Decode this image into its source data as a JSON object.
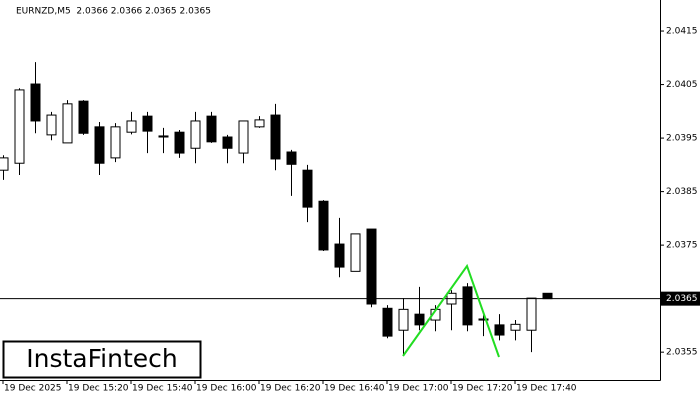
{
  "chart_data": {
    "type": "candlestick",
    "header": "EURNZD,M5  2.0366 2.0366 2.0365 2.0365",
    "logo": "InstaFintech",
    "categories": [
      "19 Dec 2025",
      null,
      null,
      null,
      "19 Dec 15:20",
      null,
      null,
      null,
      "19 Dec 15:40",
      null,
      null,
      null,
      "19 Dec 16:00",
      null,
      null,
      null,
      "19 Dec 16:20",
      null,
      null,
      null,
      "19 Dec 16:40",
      null,
      null,
      null,
      "19 Dec 17:00",
      null,
      null,
      null,
      "19 Dec 17:20",
      null,
      null,
      null,
      "19 Dec 17:40",
      null,
      null
    ],
    "open": [
      2.0389,
      2.03903,
      2.04051,
      2.03956,
      2.03941,
      2.04019,
      2.03971,
      2.03913,
      2.03961,
      2.03991,
      2.03954,
      2.03961,
      2.03931,
      2.03991,
      2.03952,
      2.03922,
      2.03971,
      2.03993,
      2.03924,
      2.0389,
      2.03832,
      2.03752,
      2.03701,
      2.0378,
      2.03632,
      2.03591,
      2.03621,
      2.0361,
      2.0364,
      2.03672,
      2.03612,
      2.03601,
      2.03591,
      2.03591,
      2.0366
    ],
    "high": [
      2.03918,
      2.04043,
      2.04092,
      2.03999,
      2.04021,
      2.04021,
      2.0398,
      2.03978,
      2.03999,
      2.03999,
      2.03969,
      2.03965,
      2.03999,
      2.03999,
      2.03956,
      2.03982,
      2.03991,
      2.04014,
      2.03928,
      2.039,
      2.03834,
      2.03801,
      2.03771,
      2.0378,
      2.03638,
      2.03651,
      2.03672,
      2.03638,
      2.03666,
      2.03679,
      2.03619,
      2.03621,
      2.0361,
      2.03651,
      2.0366
    ],
    "low": [
      2.03872,
      2.03881,
      2.03959,
      2.03946,
      2.03941,
      2.03956,
      2.03881,
      2.03905,
      2.03957,
      2.03922,
      2.03922,
      2.03913,
      2.03903,
      2.03941,
      2.03903,
      2.03903,
      2.03969,
      2.0389,
      2.03842,
      2.03793,
      2.03739,
      2.0369,
      2.03701,
      2.03634,
      2.03576,
      2.03543,
      2.03591,
      2.03589,
      2.03591,
      2.03589,
      2.0358,
      2.03572,
      2.03572,
      2.0355,
      2.0365
    ],
    "close": [
      2.03913,
      2.0404,
      2.03982,
      2.03993,
      2.04014,
      2.03959,
      2.03903,
      2.03971,
      2.03982,
      2.03963,
      2.03952,
      2.03922,
      2.03982,
      2.03943,
      2.03931,
      2.03982,
      2.03984,
      2.03911,
      2.03901,
      2.03821,
      2.03741,
      2.03709,
      2.03771,
      2.0364,
      2.0358,
      2.0363,
      2.03601,
      2.0363,
      2.0366,
      2.03601,
      2.0361,
      2.03582,
      2.03602,
      2.03651,
      2.0365
    ],
    "up_color": "#ffffff",
    "down_color": "#000000",
    "price_line": 2.0365,
    "ylim": [
      2.03498,
      2.04208
    ],
    "yticks": [
      2.0355,
      2.0375,
      2.0385,
      2.0395,
      2.0405,
      2.0415
    ]
  }
}
